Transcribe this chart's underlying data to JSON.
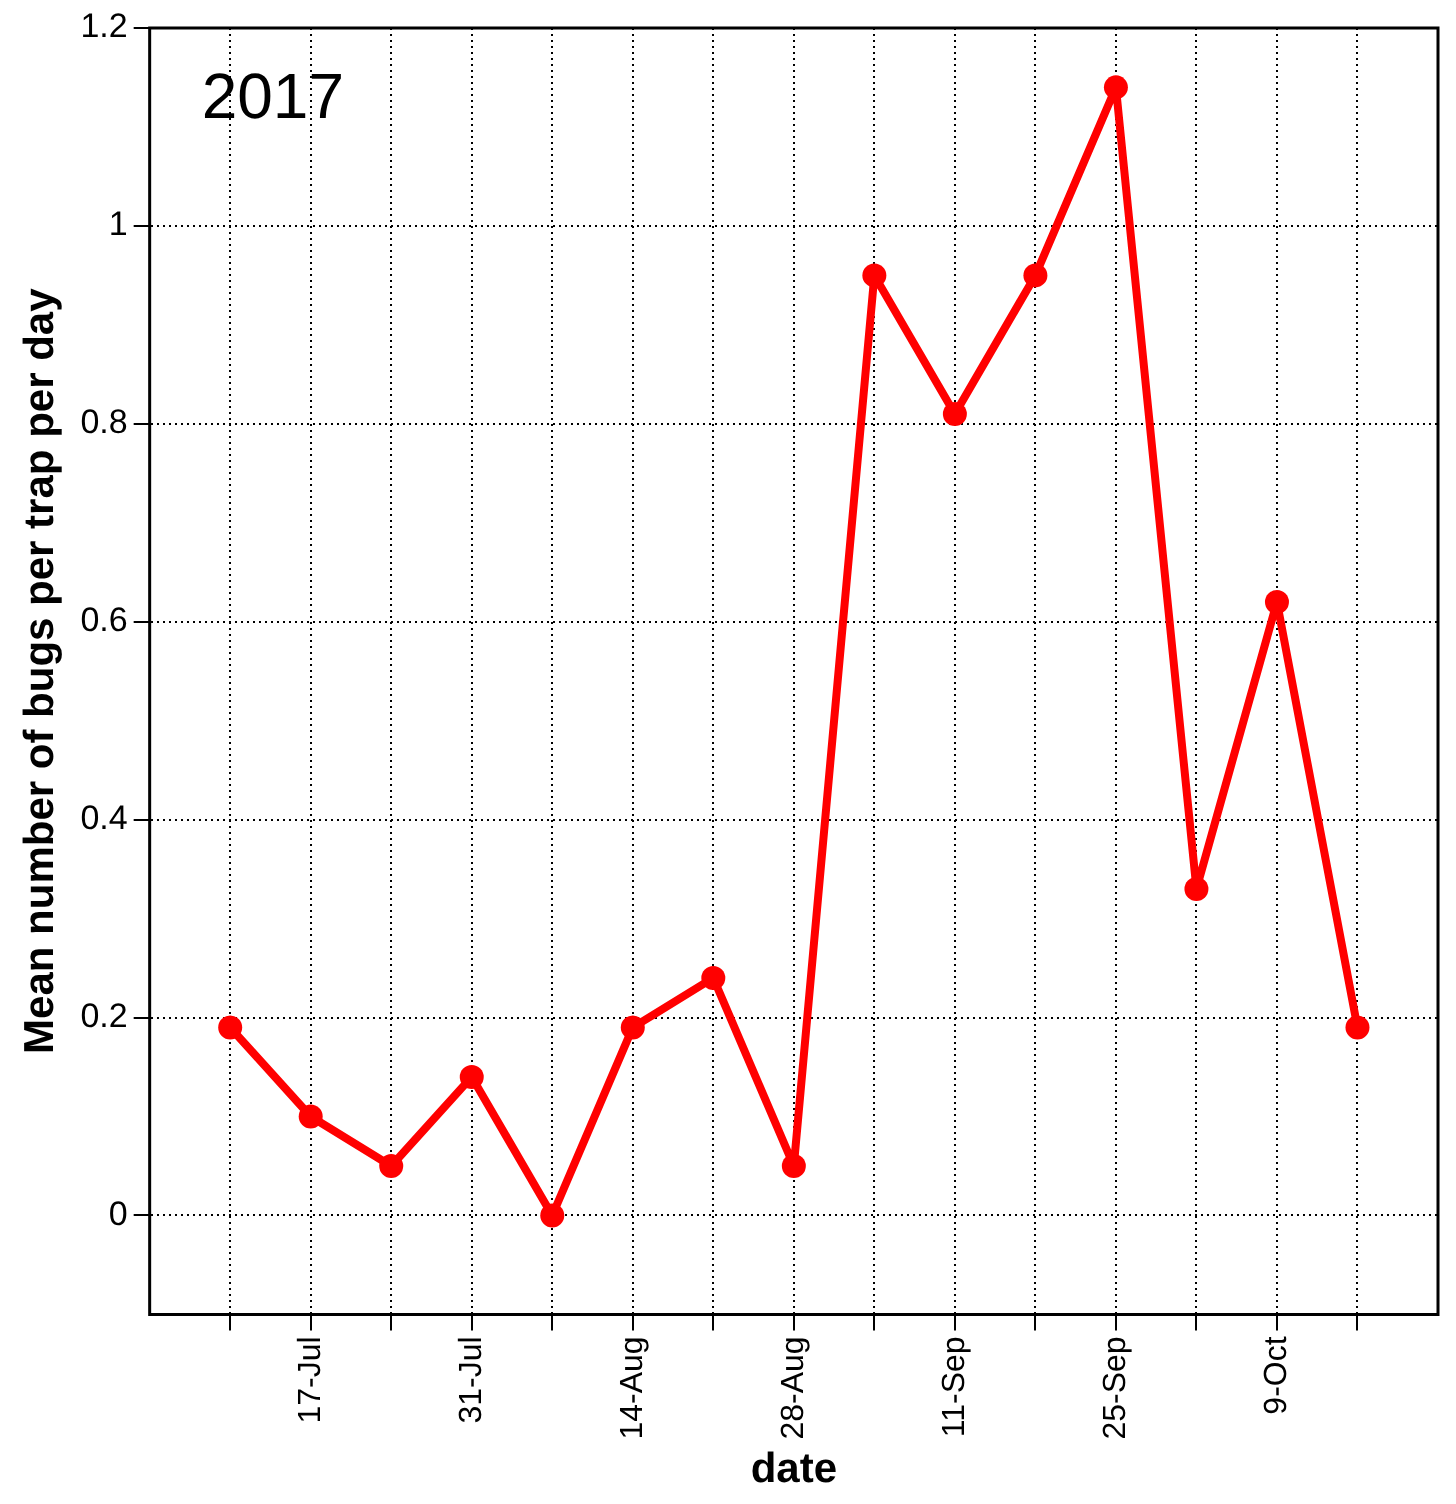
{
  "chart_data": {
    "type": "line",
    "title": "2017",
    "xlabel": "date",
    "ylabel": "Mean number of bugs per trap per day",
    "x": [
      "2017-07-10",
      "2017-07-17",
      "2017-07-24",
      "2017-07-31",
      "2017-08-07",
      "2017-08-14",
      "2017-08-21",
      "2017-08-28",
      "2017-09-04",
      "2017-09-11",
      "2017-09-18",
      "2017-09-25",
      "2017-10-02",
      "2017-10-09",
      "2017-10-16"
    ],
    "series": [
      {
        "color": "#ff0000",
        "values": [
          0.19,
          0.1,
          0.05,
          0.14,
          0,
          0.19,
          0.24,
          0.05,
          0.95,
          0.81,
          0.95,
          1.14,
          0.33,
          0.62,
          0.19
        ]
      }
    ],
    "xlim": [
      "2017-07-03",
      "2017-10-23"
    ],
    "xticks": [
      {
        "value": "2017-07-10",
        "label": null
      },
      {
        "value": "2017-07-17",
        "label": "17-Jul"
      },
      {
        "value": "2017-07-24",
        "label": null
      },
      {
        "value": "2017-07-31",
        "label": "31-Jul"
      },
      {
        "value": "2017-08-07",
        "label": null
      },
      {
        "value": "2017-08-14",
        "label": "14-Aug"
      },
      {
        "value": "2017-08-21",
        "label": null
      },
      {
        "value": "2017-08-28",
        "label": "28-Aug"
      },
      {
        "value": "2017-09-04",
        "label": null
      },
      {
        "value": "2017-09-11",
        "label": "11-Sep"
      },
      {
        "value": "2017-09-18",
        "label": null
      },
      {
        "value": "2017-09-25",
        "label": "25-Sep"
      },
      {
        "value": "2017-10-02",
        "label": null
      },
      {
        "value": "2017-10-09",
        "label": "9-Oct"
      },
      {
        "value": "2017-10-16",
        "label": null
      }
    ],
    "ylim": [
      -0.1,
      1.2
    ],
    "yticks": [
      0,
      0.2,
      0.4,
      0.6,
      0.8,
      {
        "value": 1,
        "label": "1"
      },
      1.2
    ],
    "grid": true,
    "legend": false,
    "marker": "circle",
    "line_style": "solid"
  }
}
